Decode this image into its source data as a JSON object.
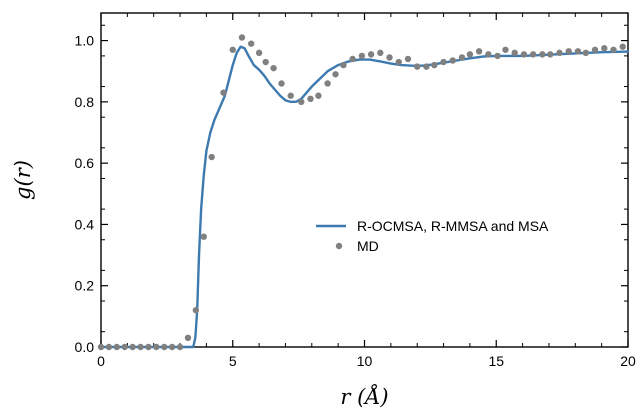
{
  "chart_data": {
    "type": "line",
    "xlabel": "r (Å)",
    "ylabel": "g(r)",
    "xlim": [
      0,
      20
    ],
    "ylim": [
      0,
      1.09
    ],
    "xticks": [
      0,
      5,
      10,
      15,
      20
    ],
    "yticks": [
      0.0,
      0.2,
      0.4,
      0.6,
      0.8,
      1.0
    ],
    "ytick_labels": [
      "0.0",
      "0.2",
      "0.4",
      "0.6",
      "0.8",
      "1.0"
    ],
    "grid": false,
    "legend_position": "center-right",
    "series": [
      {
        "name": "R-OCMSA, R-MMSA and MSA",
        "style": "line",
        "color": "#3d7ab0",
        "x": [
          0,
          3.5,
          3.58,
          3.65,
          3.72,
          3.8,
          3.9,
          4.0,
          4.15,
          4.3,
          4.5,
          4.7,
          4.85,
          5.0,
          5.15,
          5.3,
          5.45,
          5.6,
          5.8,
          6.0,
          6.2,
          6.4,
          6.6,
          6.8,
          7.0,
          7.2,
          7.4,
          7.6,
          7.8,
          8.0,
          8.3,
          8.6,
          9.0,
          9.4,
          9.8,
          10.2,
          10.6,
          11.0,
          11.4,
          11.8,
          12.2,
          12.6,
          13.0,
          13.5,
          14.0,
          14.5,
          15.0,
          15.5,
          16.0,
          16.5,
          17.0,
          17.5,
          18.0,
          18.5,
          19.0,
          19.5,
          20.0
        ],
        "y": [
          0.0,
          0.0,
          0.03,
          0.12,
          0.3,
          0.45,
          0.56,
          0.64,
          0.7,
          0.74,
          0.78,
          0.82,
          0.87,
          0.92,
          0.96,
          0.98,
          0.975,
          0.95,
          0.92,
          0.905,
          0.885,
          0.86,
          0.84,
          0.82,
          0.805,
          0.8,
          0.8,
          0.81,
          0.83,
          0.85,
          0.875,
          0.9,
          0.92,
          0.932,
          0.938,
          0.938,
          0.932,
          0.925,
          0.92,
          0.918,
          0.918,
          0.922,
          0.928,
          0.935,
          0.942,
          0.948,
          0.95,
          0.95,
          0.95,
          0.952,
          0.954,
          0.956,
          0.958,
          0.96,
          0.962,
          0.963,
          0.964
        ]
      },
      {
        "name": "MD",
        "style": "scatter",
        "color": "#808080",
        "x": [
          0,
          0.3,
          0.6,
          0.9,
          1.2,
          1.5,
          1.8,
          2.1,
          2.4,
          2.7,
          3.0,
          3.3,
          3.6,
          3.9,
          4.2,
          4.65,
          5.0,
          5.35,
          5.7,
          6.0,
          6.25,
          6.55,
          6.85,
          7.2,
          7.6,
          7.95,
          8.25,
          8.6,
          8.9,
          9.2,
          9.55,
          9.9,
          10.25,
          10.6,
          10.95,
          11.3,
          11.65,
          12.0,
          12.35,
          12.65,
          13.0,
          13.35,
          13.7,
          14.0,
          14.35,
          14.7,
          15.05,
          15.35,
          15.7,
          16.05,
          16.4,
          16.75,
          17.05,
          17.4,
          17.75,
          18.1,
          18.4,
          18.75,
          19.1,
          19.45,
          19.8
        ],
        "y": [
          0.0,
          0.0,
          0.0,
          0.0,
          0.0,
          0.0,
          0.0,
          0.0,
          0.0,
          0.0,
          0.0,
          0.03,
          0.12,
          0.36,
          0.62,
          0.83,
          0.97,
          1.01,
          0.99,
          0.96,
          0.93,
          0.91,
          0.86,
          0.82,
          0.8,
          0.81,
          0.82,
          0.86,
          0.89,
          0.92,
          0.94,
          0.95,
          0.955,
          0.96,
          0.945,
          0.93,
          0.94,
          0.915,
          0.915,
          0.92,
          0.93,
          0.935,
          0.945,
          0.955,
          0.965,
          0.955,
          0.95,
          0.97,
          0.96,
          0.955,
          0.955,
          0.955,
          0.955,
          0.96,
          0.965,
          0.965,
          0.96,
          0.97,
          0.975,
          0.97,
          0.98
        ]
      }
    ]
  }
}
